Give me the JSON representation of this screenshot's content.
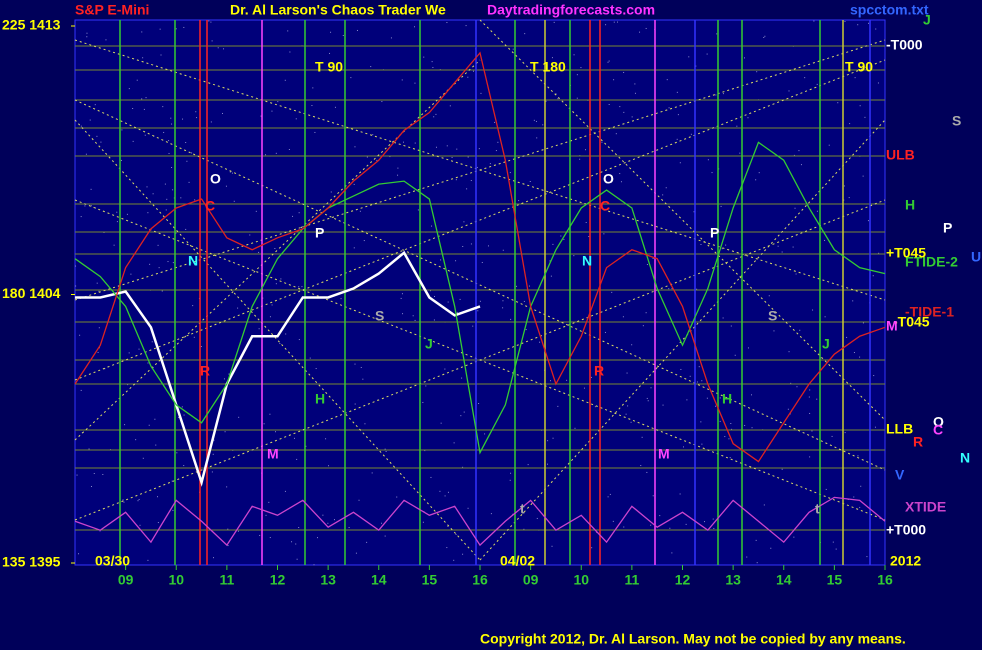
{
  "header": {
    "symbol": "S&P E-Mini",
    "title": "Dr. Al Larson's Chaos Trader We",
    "site": "Daytradingforecasts.com",
    "file": "spcctom.txt"
  },
  "chart_data": {
    "type": "line",
    "categories": [
      null,
      null,
      "09",
      null,
      "10",
      null,
      "11",
      null,
      "12",
      null,
      "13",
      null,
      "14",
      null,
      "15",
      null,
      "16",
      null,
      "09",
      null,
      "10",
      null,
      "11",
      null,
      "12",
      null,
      "13",
      null,
      "14",
      null,
      "15",
      null,
      "16"
    ],
    "ylim": [
      1395,
      1413
    ],
    "yticks": [
      {
        "value": 1395,
        "label": "135 1395"
      },
      {
        "value": 1404,
        "label": "180 1404"
      },
      {
        "value": 1413,
        "label": "225 1413"
      }
    ],
    "series": [
      {
        "color": "#ffffff",
        "values": [
          1403.9,
          1403.9,
          1404.1,
          1402.9,
          1400.3,
          1397.7,
          1401.0,
          1402.6,
          1402.6,
          1403.9,
          1403.9,
          1404.2,
          1404.7,
          1405.4,
          1403.9,
          1403.3,
          1403.6,
          null,
          null,
          null,
          null,
          null,
          null,
          null,
          null,
          null,
          null,
          null,
          null,
          null,
          null,
          null,
          null
        ]
      },
      {
        "name": "FTIDE-2",
        "color": "#33cc33",
        "values": [
          1405.2,
          1404.6,
          1403.6,
          1401.6,
          1400.3,
          1399.7,
          1401.0,
          1403.6,
          1405.2,
          1406.2,
          1406.9,
          1407.3,
          1407.7,
          1407.8,
          1407.2,
          1403.6,
          1398.7,
          1400.3,
          1403.6,
          1405.5,
          1406.9,
          1407.5,
          1406.9,
          1404.2,
          1402.3,
          1404.2,
          1406.9,
          1409.1,
          1408.5,
          1406.9,
          1405.5,
          1404.9,
          1404.7
        ]
      },
      {
        "name": "-TIDE-1",
        "color": "#dd2222",
        "values": [
          1401.0,
          1402.3,
          1404.9,
          1406.2,
          1406.9,
          1407.2,
          1405.9,
          1405.5,
          1405.9,
          1406.2,
          1406.9,
          1407.8,
          1408.5,
          1409.5,
          1410.1,
          1411.1,
          1412.1,
          1408.5,
          1403.6,
          1401.0,
          1402.6,
          1404.9,
          1405.5,
          1405.2,
          1403.6,
          1401.0,
          1399.0,
          1398.4,
          1399.7,
          1401.0,
          1402.0,
          1402.6,
          1402.9
        ]
      },
      {
        "name": "XTIDE",
        "color": "#cc44cc",
        "values": [
          1396.4,
          1396.1,
          1396.7,
          1395.7,
          1397.1,
          1396.4,
          1395.6,
          1396.9,
          1396.6,
          1397.1,
          1396.2,
          1396.7,
          1396.1,
          1397.1,
          1396.6,
          1396.9,
          1395.6,
          1396.4,
          1397.1,
          1396.1,
          1396.6,
          1395.7,
          1396.9,
          1396.2,
          1396.7,
          1396.1,
          1397.1,
          1396.4,
          1395.7,
          1396.7,
          1397.2,
          1397.1,
          1396.4
        ]
      }
    ],
    "date_labels": [
      "03/30",
      "04/02",
      "2012"
    ],
    "annotations": [
      "T 90",
      "T 180",
      "T 90",
      "O",
      "O",
      "C",
      "C",
      "N",
      "N",
      "P",
      "P",
      "S",
      "S",
      "J",
      "J",
      "H",
      "H",
      "M",
      "M",
      "t",
      "t",
      "R",
      "R"
    ],
    "level_labels": [
      "-T000",
      "ULB",
      "H",
      "+T045",
      "-T045",
      "LLB",
      "+T000",
      "S",
      "P",
      "U",
      "M",
      "O",
      "C",
      "R",
      "N",
      "V",
      "J"
    ]
  },
  "footer": "Copyright 2012, Dr. Al Larson. May not be copied by any means."
}
